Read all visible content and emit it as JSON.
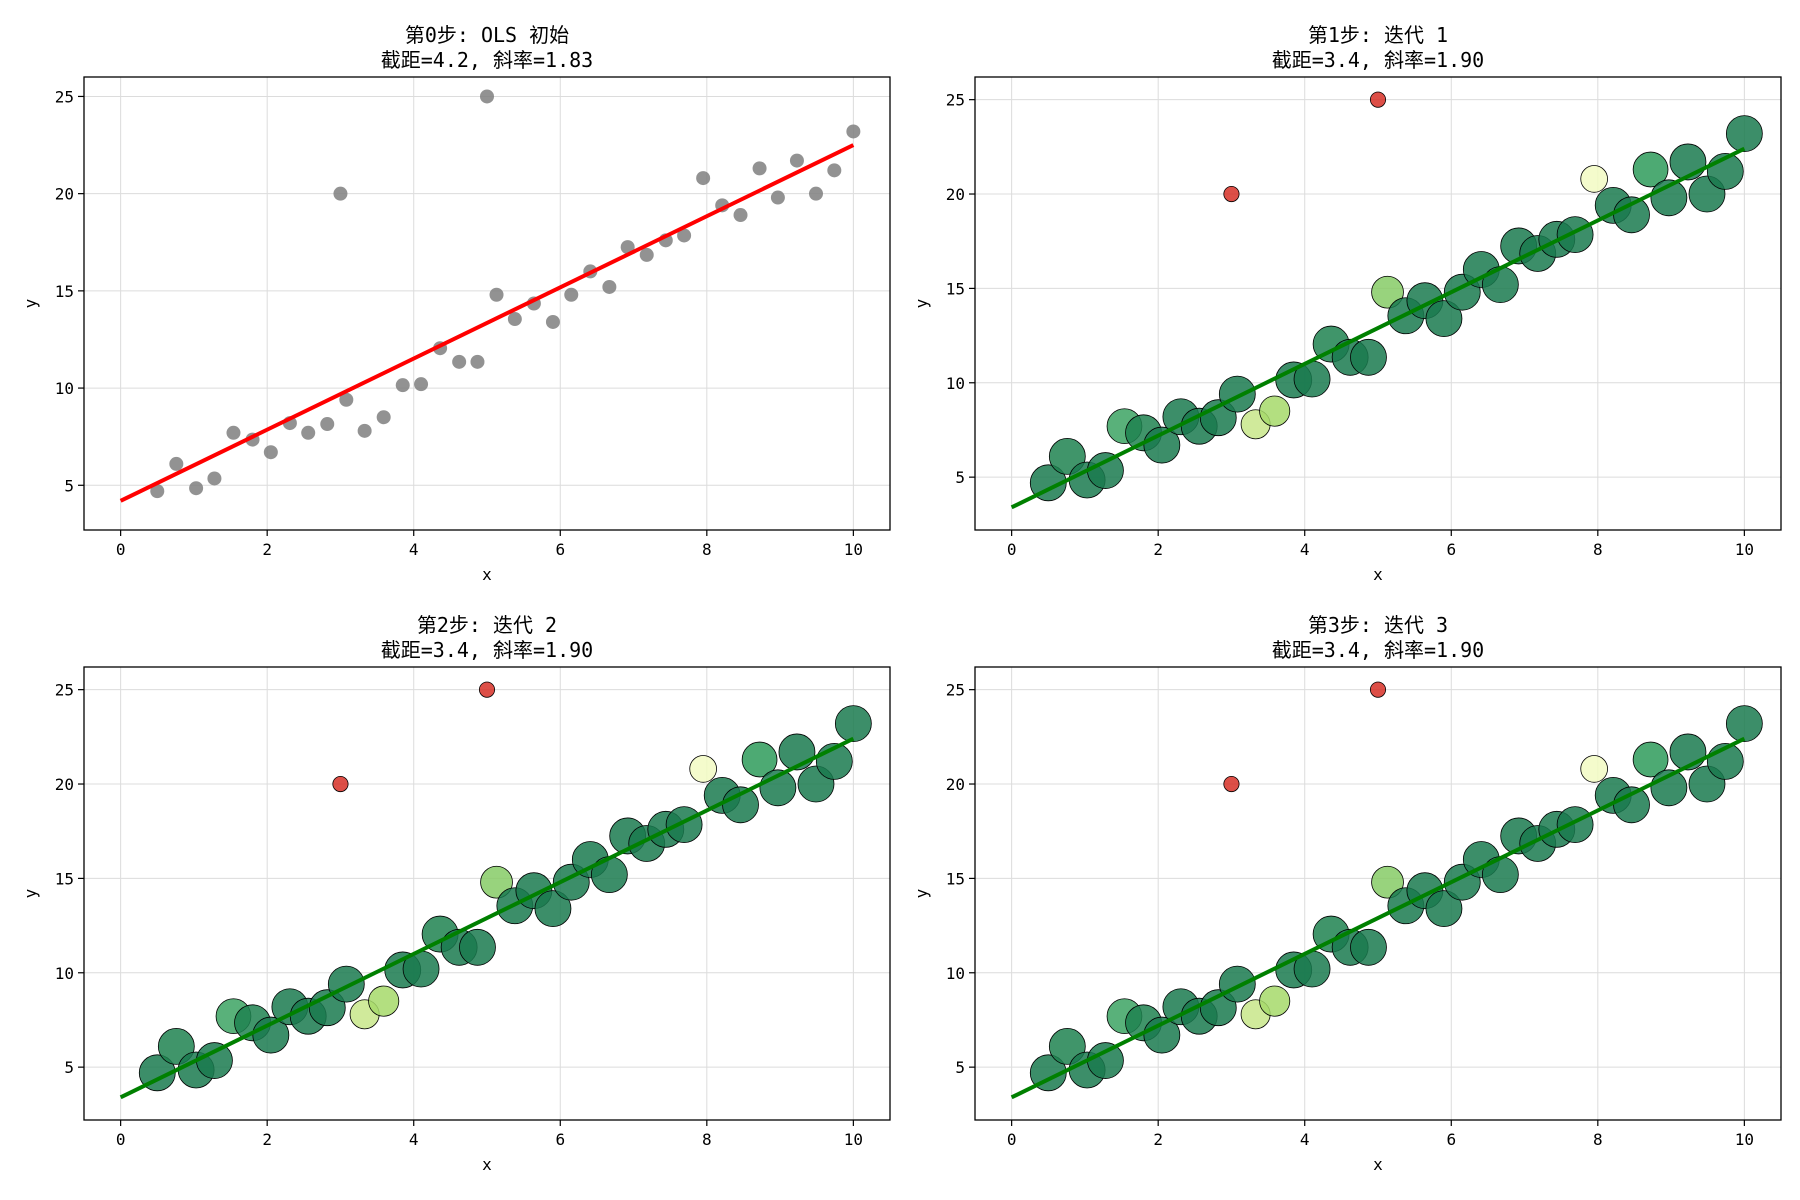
{
  "chart_data": [
    {
      "type": "scatter",
      "title": "第0步: OLS 初始",
      "subtitle": "截距=4.2, 斜率=1.83",
      "xlabel": "x",
      "ylabel": "y",
      "xlim": [
        -0.5,
        10.5
      ],
      "ylim": [
        2.7,
        26.0
      ],
      "xticks": [
        0,
        2,
        4,
        6,
        8,
        10
      ],
      "yticks": [
        5,
        10,
        15,
        20,
        25
      ],
      "grid": true,
      "fit_line": {
        "intercept": 4.2,
        "slope": 1.83,
        "color": "#ff0000"
      },
      "x": [
        0.5,
        0.76,
        1.03,
        1.28,
        1.54,
        1.8,
        2.05,
        2.31,
        2.56,
        2.82,
        3.0,
        3.08,
        3.33,
        3.59,
        3.85,
        4.1,
        4.36,
        4.62,
        4.87,
        5.0,
        5.13,
        5.38,
        5.64,
        5.9,
        6.15,
        6.41,
        6.67,
        6.92,
        7.18,
        7.44,
        7.69,
        7.95,
        8.21,
        8.46,
        8.72,
        8.97,
        9.23,
        9.49,
        9.74,
        10.0
      ],
      "y": [
        4.7,
        6.1,
        4.85,
        5.35,
        7.7,
        7.35,
        6.7,
        8.2,
        7.7,
        8.15,
        20.0,
        9.4,
        7.8,
        8.5,
        10.15,
        10.2,
        12.05,
        11.35,
        11.35,
        25.0,
        14.8,
        13.55,
        14.35,
        13.4,
        14.8,
        16.0,
        15.2,
        17.25,
        16.85,
        17.6,
        17.85,
        20.8,
        19.4,
        18.9,
        21.3,
        19.8,
        21.7,
        20.0,
        21.2,
        23.2
      ],
      "colors": [
        "#7f7f7f",
        "#7f7f7f",
        "#7f7f7f",
        "#7f7f7f",
        "#7f7f7f",
        "#7f7f7f",
        "#7f7f7f",
        "#7f7f7f",
        "#7f7f7f",
        "#7f7f7f",
        "#7f7f7f",
        "#7f7f7f",
        "#7f7f7f",
        "#7f7f7f",
        "#7f7f7f",
        "#7f7f7f",
        "#7f7f7f",
        "#7f7f7f",
        "#7f7f7f",
        "#7f7f7f",
        "#7f7f7f",
        "#7f7f7f",
        "#7f7f7f",
        "#7f7f7f",
        "#7f7f7f",
        "#7f7f7f",
        "#7f7f7f",
        "#7f7f7f",
        "#7f7f7f",
        "#7f7f7f",
        "#7f7f7f",
        "#7f7f7f",
        "#7f7f7f",
        "#7f7f7f",
        "#7f7f7f",
        "#7f7f7f",
        "#7f7f7f",
        "#7f7f7f",
        "#7f7f7f",
        "#7f7f7f"
      ],
      "weights": [
        0.3,
        0.3,
        0.3,
        0.3,
        0.3,
        0.3,
        0.3,
        0.3,
        0.3,
        0.3,
        0.3,
        0.3,
        0.3,
        0.3,
        0.3,
        0.3,
        0.3,
        0.3,
        0.3,
        0.3,
        0.3,
        0.3,
        0.3,
        0.3,
        0.3,
        0.3,
        0.3,
        0.3,
        0.3,
        0.3,
        0.3,
        0.3,
        0.3,
        0.3,
        0.3,
        0.3,
        0.3,
        0.3,
        0.3,
        0.3
      ]
    },
    {
      "type": "scatter",
      "title": "第1步: 迭代 1",
      "subtitle": "截距=3.4, 斜率=1.90",
      "xlabel": "x",
      "ylabel": "y",
      "xlim": [
        -0.5,
        10.5
      ],
      "ylim": [
        2.2,
        26.2
      ],
      "xticks": [
        0,
        2,
        4,
        6,
        8,
        10
      ],
      "yticks": [
        5,
        10,
        15,
        20,
        25
      ],
      "grid": true,
      "fit_line": {
        "intercept": 3.4,
        "slope": 1.9,
        "color": "#008000"
      },
      "x": [
        0.5,
        0.76,
        1.03,
        1.28,
        1.54,
        1.8,
        2.05,
        2.31,
        2.56,
        2.82,
        3.0,
        3.08,
        3.33,
        3.59,
        3.85,
        4.1,
        4.36,
        4.62,
        4.87,
        5.0,
        5.13,
        5.38,
        5.64,
        5.9,
        6.15,
        6.41,
        6.67,
        6.92,
        7.18,
        7.44,
        7.69,
        7.95,
        8.21,
        8.46,
        8.72,
        8.97,
        9.23,
        9.49,
        9.74,
        10.0
      ],
      "y": [
        4.7,
        6.1,
        4.85,
        5.35,
        7.7,
        7.35,
        6.7,
        8.2,
        7.7,
        8.15,
        20.0,
        9.4,
        7.8,
        8.5,
        10.15,
        10.2,
        12.05,
        11.35,
        11.35,
        25.0,
        14.8,
        13.55,
        14.35,
        13.4,
        14.8,
        16.0,
        15.2,
        17.25,
        16.85,
        17.6,
        17.85,
        20.8,
        19.4,
        18.9,
        21.3,
        19.8,
        21.7,
        20.0,
        21.2,
        23.2
      ],
      "colors": [
        "#1a7a4f",
        "#1e8250",
        "#1a7a4f",
        "#1a7a4f",
        "#3ca363",
        "#1e8250",
        "#1a7a4f",
        "#1a7a4f",
        "#1a7a4f",
        "#1a7a4f",
        "#d73027",
        "#1a7a4f",
        "#c8e68a",
        "#a6d96a",
        "#1a7a4f",
        "#1a7a4f",
        "#1e8250",
        "#1a7a4f",
        "#1a7a4f",
        "#d73027",
        "#86cb66",
        "#1a7a4f",
        "#1a7a4f",
        "#1a7a4f",
        "#1a7a4f",
        "#1a7a4f",
        "#1a7a4f",
        "#1a7a4f",
        "#1a7a4f",
        "#1a7a4f",
        "#1a7a4f",
        "#f2fac3",
        "#1a7a4f",
        "#1a7a4f",
        "#2e9b5a",
        "#1a7a4f",
        "#1a7a4f",
        "#1a7a4f",
        "#1a7a4f",
        "#1a7a4f"
      ],
      "weights": [
        1.0,
        1.0,
        1.0,
        1.0,
        0.95,
        1.0,
        1.0,
        1.0,
        1.0,
        1.0,
        0.1,
        1.0,
        0.7,
        0.75,
        1.0,
        1.0,
        1.0,
        1.0,
        1.0,
        0.1,
        0.82,
        1.0,
        1.0,
        1.0,
        1.0,
        1.0,
        1.0,
        1.0,
        1.0,
        1.0,
        1.0,
        0.6,
        1.0,
        1.0,
        0.95,
        1.0,
        1.0,
        1.0,
        1.0,
        1.0
      ]
    },
    {
      "type": "scatter",
      "title": "第2步: 迭代 2",
      "subtitle": "截距=3.4, 斜率=1.90",
      "xlabel": "x",
      "ylabel": "y",
      "xlim": [
        -0.5,
        10.5
      ],
      "ylim": [
        2.2,
        26.2
      ],
      "xticks": [
        0,
        2,
        4,
        6,
        8,
        10
      ],
      "yticks": [
        5,
        10,
        15,
        20,
        25
      ],
      "grid": true,
      "fit_line": {
        "intercept": 3.4,
        "slope": 1.9,
        "color": "#008000"
      },
      "x": [
        0.5,
        0.76,
        1.03,
        1.28,
        1.54,
        1.8,
        2.05,
        2.31,
        2.56,
        2.82,
        3.0,
        3.08,
        3.33,
        3.59,
        3.85,
        4.1,
        4.36,
        4.62,
        4.87,
        5.0,
        5.13,
        5.38,
        5.64,
        5.9,
        6.15,
        6.41,
        6.67,
        6.92,
        7.18,
        7.44,
        7.69,
        7.95,
        8.21,
        8.46,
        8.72,
        8.97,
        9.23,
        9.49,
        9.74,
        10.0
      ],
      "y": [
        4.7,
        6.1,
        4.85,
        5.35,
        7.7,
        7.35,
        6.7,
        8.2,
        7.7,
        8.15,
        20.0,
        9.4,
        7.8,
        8.5,
        10.15,
        10.2,
        12.05,
        11.35,
        11.35,
        25.0,
        14.8,
        13.55,
        14.35,
        13.4,
        14.8,
        16.0,
        15.2,
        17.25,
        16.85,
        17.6,
        17.85,
        20.8,
        19.4,
        18.9,
        21.3,
        19.8,
        21.7,
        20.0,
        21.2,
        23.2
      ],
      "colors": [
        "#1a7a4f",
        "#1e8250",
        "#1a7a4f",
        "#1a7a4f",
        "#3ca363",
        "#1e8250",
        "#1a7a4f",
        "#1a7a4f",
        "#1a7a4f",
        "#1a7a4f",
        "#d73027",
        "#1a7a4f",
        "#c8e68a",
        "#a6d96a",
        "#1a7a4f",
        "#1a7a4f",
        "#1e8250",
        "#1a7a4f",
        "#1a7a4f",
        "#d73027",
        "#86cb66",
        "#1a7a4f",
        "#1a7a4f",
        "#1a7a4f",
        "#1a7a4f",
        "#1a7a4f",
        "#1a7a4f",
        "#1a7a4f",
        "#1a7a4f",
        "#1a7a4f",
        "#1a7a4f",
        "#f2fac3",
        "#1a7a4f",
        "#1a7a4f",
        "#2e9b5a",
        "#1a7a4f",
        "#1a7a4f",
        "#1a7a4f",
        "#1a7a4f",
        "#1a7a4f"
      ],
      "weights": [
        1.0,
        1.0,
        1.0,
        1.0,
        0.95,
        1.0,
        1.0,
        1.0,
        1.0,
        1.0,
        0.1,
        1.0,
        0.7,
        0.75,
        1.0,
        1.0,
        1.0,
        1.0,
        1.0,
        0.1,
        0.82,
        1.0,
        1.0,
        1.0,
        1.0,
        1.0,
        1.0,
        1.0,
        1.0,
        1.0,
        1.0,
        0.6,
        1.0,
        1.0,
        0.95,
        1.0,
        1.0,
        1.0,
        1.0,
        1.0
      ]
    },
    {
      "type": "scatter",
      "title": "第3步: 迭代 3",
      "subtitle": "截距=3.4, 斜率=1.90",
      "xlabel": "x",
      "ylabel": "y",
      "xlim": [
        -0.5,
        10.5
      ],
      "ylim": [
        2.2,
        26.2
      ],
      "xticks": [
        0,
        2,
        4,
        6,
        8,
        10
      ],
      "yticks": [
        5,
        10,
        15,
        20,
        25
      ],
      "grid": true,
      "fit_line": {
        "intercept": 3.4,
        "slope": 1.9,
        "color": "#008000"
      },
      "x": [
        0.5,
        0.76,
        1.03,
        1.28,
        1.54,
        1.8,
        2.05,
        2.31,
        2.56,
        2.82,
        3.0,
        3.08,
        3.33,
        3.59,
        3.85,
        4.1,
        4.36,
        4.62,
        4.87,
        5.0,
        5.13,
        5.38,
        5.64,
        5.9,
        6.15,
        6.41,
        6.67,
        6.92,
        7.18,
        7.44,
        7.69,
        7.95,
        8.21,
        8.46,
        8.72,
        8.97,
        9.23,
        9.49,
        9.74,
        10.0
      ],
      "y": [
        4.7,
        6.1,
        4.85,
        5.35,
        7.7,
        7.35,
        6.7,
        8.2,
        7.7,
        8.15,
        20.0,
        9.4,
        7.8,
        8.5,
        10.15,
        10.2,
        12.05,
        11.35,
        11.35,
        25.0,
        14.8,
        13.55,
        14.35,
        13.4,
        14.8,
        16.0,
        15.2,
        17.25,
        16.85,
        17.6,
        17.85,
        20.8,
        19.4,
        18.9,
        21.3,
        19.8,
        21.7,
        20.0,
        21.2,
        23.2
      ],
      "colors": [
        "#1a7a4f",
        "#1e8250",
        "#1a7a4f",
        "#1a7a4f",
        "#3ca363",
        "#1e8250",
        "#1a7a4f",
        "#1a7a4f",
        "#1a7a4f",
        "#1a7a4f",
        "#d73027",
        "#1a7a4f",
        "#c8e68a",
        "#a6d96a",
        "#1a7a4f",
        "#1a7a4f",
        "#1e8250",
        "#1a7a4f",
        "#1a7a4f",
        "#d73027",
        "#86cb66",
        "#1a7a4f",
        "#1a7a4f",
        "#1a7a4f",
        "#1a7a4f",
        "#1a7a4f",
        "#1a7a4f",
        "#1a7a4f",
        "#1a7a4f",
        "#1a7a4f",
        "#1a7a4f",
        "#f2fac3",
        "#1a7a4f",
        "#1a7a4f",
        "#2e9b5a",
        "#1a7a4f",
        "#1a7a4f",
        "#1a7a4f",
        "#1a7a4f",
        "#1a7a4f"
      ],
      "weights": [
        1.0,
        1.0,
        1.0,
        1.0,
        0.95,
        1.0,
        1.0,
        1.0,
        1.0,
        1.0,
        0.1,
        1.0,
        0.7,
        0.75,
        1.0,
        1.0,
        1.0,
        1.0,
        1.0,
        0.1,
        0.82,
        1.0,
        1.0,
        1.0,
        1.0,
        1.0,
        1.0,
        1.0,
        1.0,
        1.0,
        1.0,
        0.6,
        1.0,
        1.0,
        0.95,
        1.0,
        1.0,
        1.0,
        1.0,
        1.0
      ]
    }
  ]
}
